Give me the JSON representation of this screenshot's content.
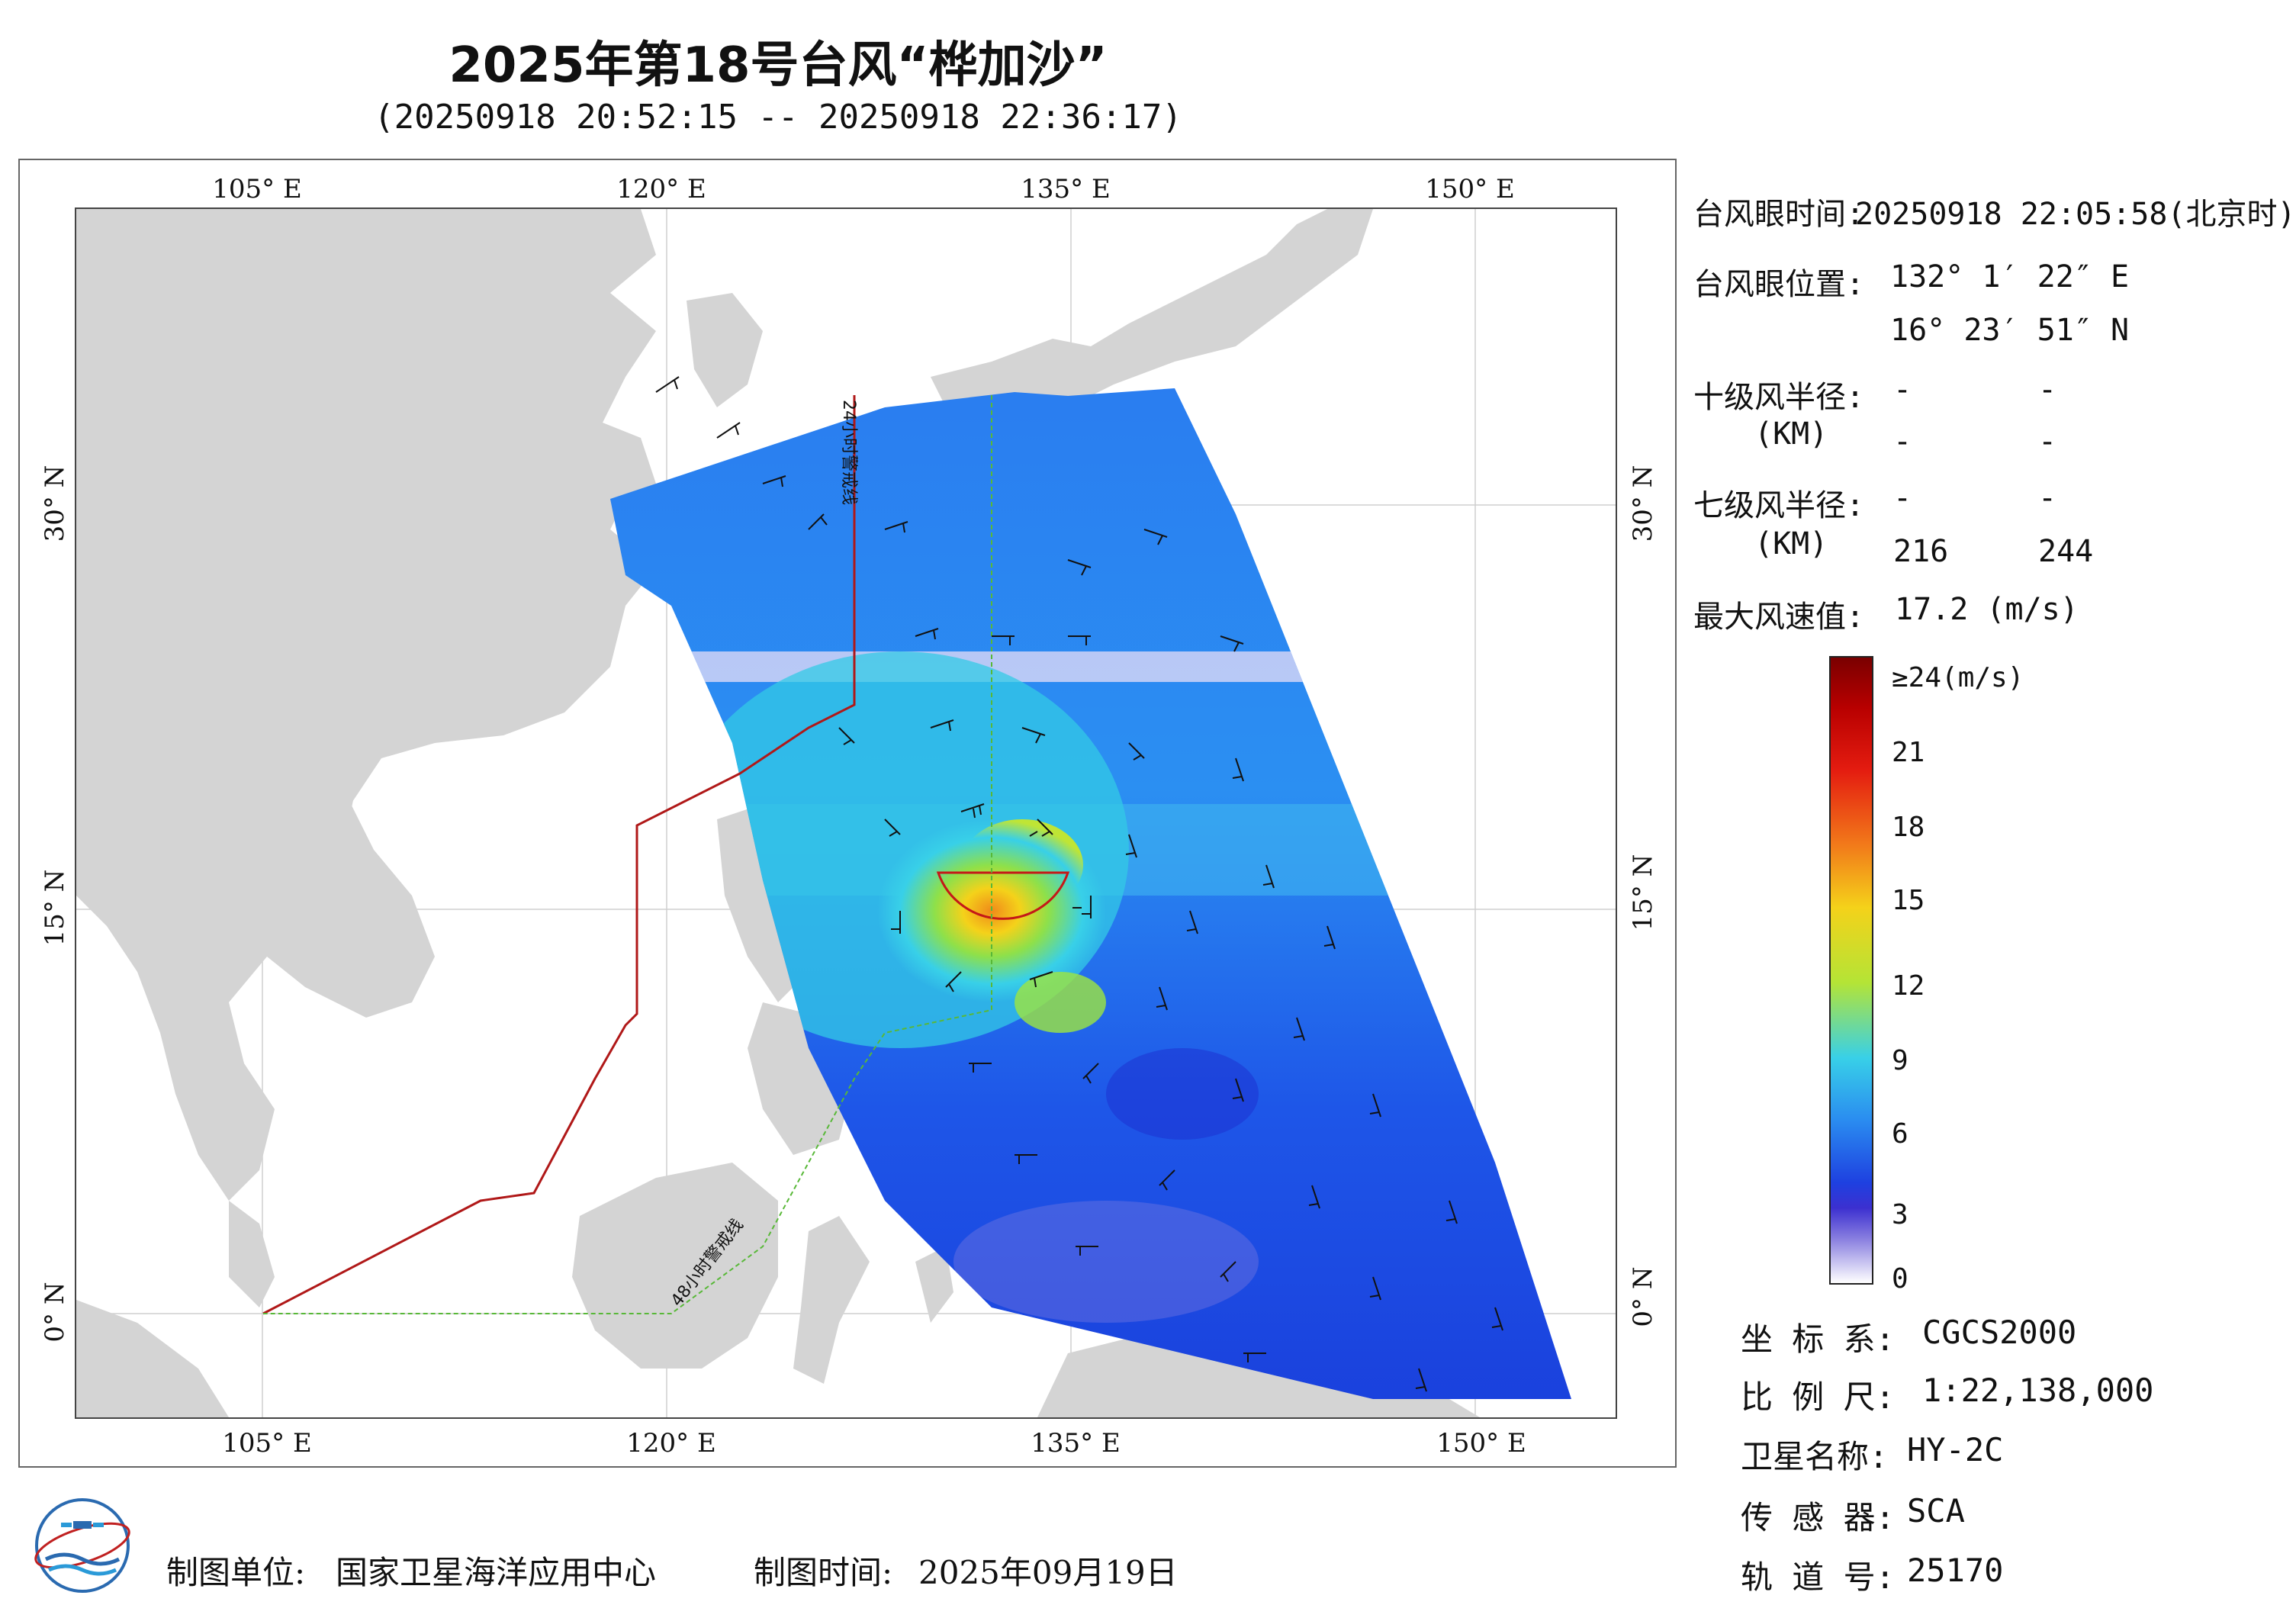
{
  "title": "2025年第18号台风“桦加沙”",
  "subtitle": "(20250918 20:52:15 -- 20250918 22:36:17)",
  "map": {
    "lon_labels_top": [
      "105° E",
      "120° E",
      "135° E",
      "150° E"
    ],
    "lon_labels_bottom": [
      "105° E",
      "120° E",
      "135° E",
      "150° E"
    ],
    "lat_labels_left": [
      "30° N",
      "15° N",
      "0° N"
    ],
    "lat_labels_right": [
      "30° N",
      "15° N",
      "0° N"
    ],
    "warning_line_24h": "24小时警戒线",
    "warning_line_48h": "48小时警戒线",
    "colors": {
      "land": "#d4d4d4",
      "sea": "#ffffff",
      "line24": "#b01818",
      "line48": "#58b838",
      "wind_barb": "#111111"
    }
  },
  "info": {
    "eye_time_label": "台风眼时间:",
    "eye_time_value": "20250918 22:05:58(北京时)",
    "eye_pos_label": "台风眼位置:",
    "eye_lon": "132° 1′ 22″ E",
    "eye_lat": "16° 23′ 51″ N",
    "r10_label": "十级风半径:",
    "r10_unit": "(KM)",
    "r10_values": [
      "-",
      "-",
      "-",
      "-"
    ],
    "r7_label": "七级风半径:",
    "r7_unit": "(KM)",
    "r7_values": [
      "-",
      "-",
      "216",
      "244"
    ],
    "max_wind_label": "最大风速值:",
    "max_wind_value": "17.2 (m/s)"
  },
  "colorbar": {
    "labels": [
      "≥24(m/s)",
      "21",
      "18",
      "15",
      "12",
      "9",
      "6",
      "3",
      "0"
    ],
    "max": 24,
    "min": 0
  },
  "meta": {
    "crs_label": "坐 标 系:",
    "crs_value": "CGCS2000",
    "scale_label": "比 例 尺:",
    "scale_value": "1:22,138,000",
    "sat_label": "卫星名称:",
    "sat_value": "HY-2C",
    "sensor_label": "传 感 器:",
    "sensor_value": "SCA",
    "orbit_label": "轨 道 号:",
    "orbit_value": "25170"
  },
  "footer": {
    "org_label": "制图单位:",
    "org_value": "国家卫星海洋应用中心",
    "date_label": "制图时间:",
    "date_value": "2025年09月19日"
  }
}
